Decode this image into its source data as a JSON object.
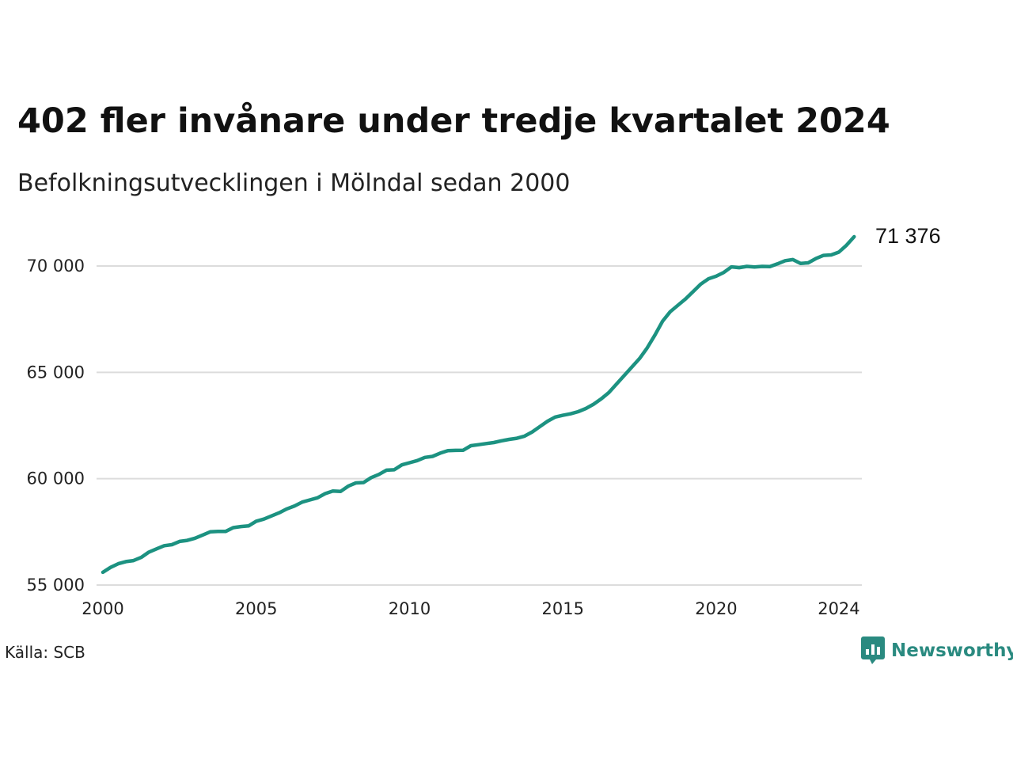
{
  "title": "402 fler invånare under tredje kvartalet 2024",
  "subtitle": "Befolkningsutvecklingen i Mölndal sedan 2000",
  "source": "Källa: SCB",
  "brand": {
    "name": "Newsworthy",
    "icon": "newsworthy-logo-icon",
    "color": "#2a8a80"
  },
  "colors": {
    "line": "#1c9281",
    "grid": "#dcdcdc"
  },
  "chart_data": {
    "type": "line",
    "grid": true,
    "xlim": [
      2000,
      2024.75
    ],
    "ylim": [
      55000,
      72000
    ],
    "x_ticks": [
      2000,
      2005,
      2010,
      2015,
      2020,
      2024
    ],
    "x_tick_labels": [
      "2000",
      "2005",
      "2010",
      "2015",
      "2020",
      "2024"
    ],
    "y_ticks": [
      55000,
      60000,
      65000,
      70000
    ],
    "y_tick_labels": [
      "55 000",
      "60 000",
      "65 000",
      "70 000"
    ],
    "end_label": "71 376",
    "series": [
      {
        "x_start": 2000.0,
        "x_step": 0.25,
        "values": [
          55600,
          55830,
          56000,
          56100,
          56150,
          56300,
          56550,
          56700,
          56850,
          56900,
          57050,
          57100,
          57200,
          57350,
          57500,
          57520,
          57520,
          57700,
          57750,
          57780,
          58000,
          58100,
          58250,
          58400,
          58580,
          58720,
          58900,
          59000,
          59100,
          59300,
          59420,
          59400,
          59650,
          59800,
          59820,
          60050,
          60200,
          60400,
          60420,
          60650,
          60750,
          60850,
          61000,
          61050,
          61200,
          61320,
          61330,
          61340,
          61550,
          61600,
          61650,
          61700,
          61780,
          61850,
          61900,
          62000,
          62200,
          62450,
          62700,
          62900,
          62980,
          63050,
          63150,
          63300,
          63500,
          63750,
          64050,
          64450,
          64850,
          65250,
          65650,
          66150,
          66750,
          67400,
          67850,
          68150,
          68450,
          68800,
          69150,
          69400,
          69520,
          69700,
          69960,
          69920,
          69980,
          69950,
          69980,
          69970,
          70100,
          70250,
          70300,
          70120,
          70150,
          70350,
          70500,
          70520,
          70650,
          70974,
          71376
        ]
      }
    ]
  }
}
